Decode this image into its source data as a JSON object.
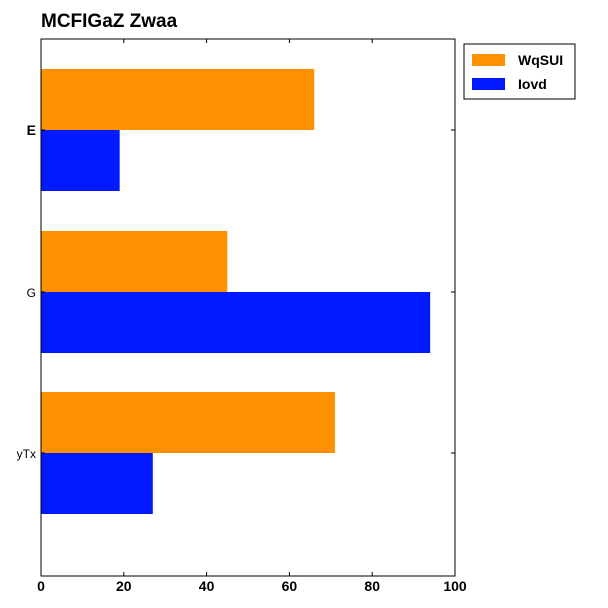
{
  "chart_data": {
    "type": "bar",
    "orientation": "horizontal",
    "title": "MCFIGaZ Zwaa",
    "categories": [
      "E",
      "G",
      "yTx"
    ],
    "series": [
      {
        "name": "WqSUI",
        "color": "#ff9000",
        "values": [
          66,
          45,
          71
        ]
      },
      {
        "name": "Iovd",
        "color": "#0019ff",
        "values": [
          19,
          94,
          27
        ]
      }
    ],
    "xlim": [
      0,
      100
    ],
    "xticks": [
      0,
      20,
      40,
      60,
      80,
      100
    ],
    "grid": false,
    "legend_position": "outside-top-right"
  }
}
